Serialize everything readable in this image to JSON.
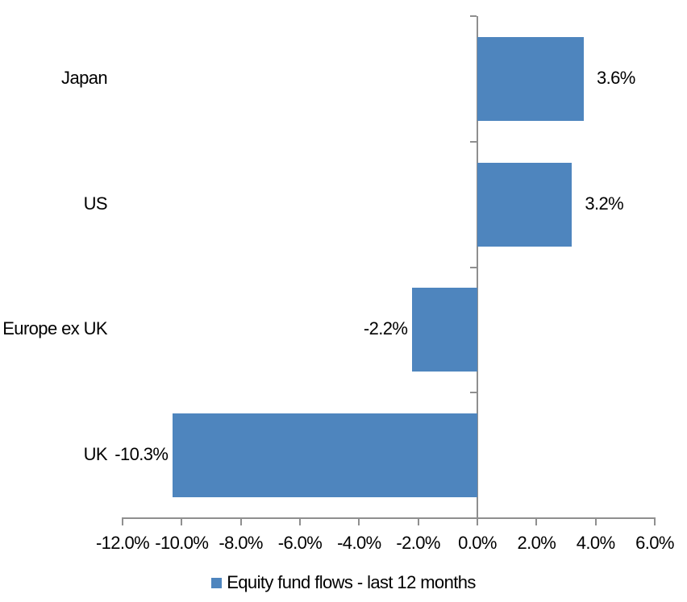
{
  "chart_data": {
    "type": "bar",
    "orientation": "horizontal",
    "title": "",
    "categories": [
      "Japan",
      "US",
      "Europe ex UK",
      "UK"
    ],
    "values": [
      3.6,
      3.2,
      -2.2,
      -10.3
    ],
    "data_labels": [
      "3.6%",
      "3.2%",
      "-2.2%",
      "-10.3%"
    ],
    "series_name": "Equity fund flows - last 12 months",
    "xlim": [
      -12,
      6
    ],
    "x_tick_step": 2,
    "x_tick_labels": [
      "-12.0%",
      "-10.0%",
      "-8.0%",
      "-6.0%",
      "-4.0%",
      "-2.0%",
      "0.0%",
      "2.0%",
      "4.0%",
      "6.0%"
    ],
    "grid": false,
    "legend_position": "bottom",
    "bar_color": "#4e85be",
    "axis_color": "#8f8f8f",
    "text_color": "#000000"
  },
  "legend": {
    "items": [
      {
        "label": "Equity fund flows - last 12 months",
        "color": "#4e85be"
      }
    ]
  }
}
